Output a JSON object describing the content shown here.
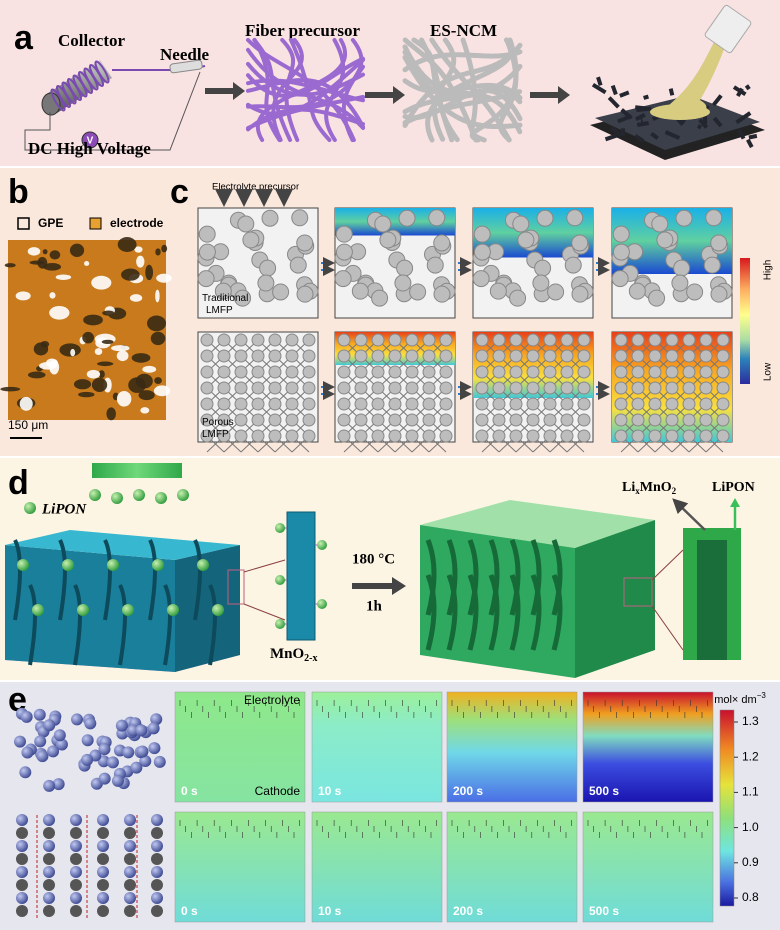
{
  "panel_a": {
    "label": "a",
    "collector": "Collector",
    "needle": "Needle",
    "voltage": "DC High Voltage",
    "meter": "V",
    "fiber_precursor": "Fiber precursor",
    "es_ncm": "ES-NCM"
  },
  "panel_b": {
    "label": "b",
    "legend": [
      "GPE",
      "electrode"
    ],
    "scale_bar": "150 μm"
  },
  "panel_c": {
    "label": "c",
    "electrolyte_precursor": "Electrolyte precursor",
    "traditional": [
      "Traditional",
      "LMFP"
    ],
    "porous": [
      "Porous",
      "LMFP"
    ],
    "colorbar": {
      "high": "High",
      "low": "Low"
    }
  },
  "panel_d": {
    "label": "d",
    "lipon_source": "LiPON",
    "mno2": {
      "base": "MnO",
      "sub": "2-x"
    },
    "temperature": "180 °C",
    "time": "1h",
    "lixmno2": {
      "li": "Li",
      "x": "x",
      "base": "MnO",
      "sub": "2"
    },
    "lipon_layer": "LiPON"
  },
  "panel_e": {
    "label": "e",
    "electrolyte": "Electrolyte",
    "cathode": "Cathode",
    "times_top": [
      "0 s",
      "10 s",
      "200 s",
      "500 s"
    ],
    "times_bottom": [
      "0 s",
      "10 s",
      "200 s",
      "500 s"
    ],
    "unit": {
      "base": "mol× dm",
      "sup": "−3"
    },
    "colorbar_ticks": [
      "1.3",
      "1.2",
      "1.1",
      "1.0",
      "0.9",
      "0.8"
    ]
  }
}
